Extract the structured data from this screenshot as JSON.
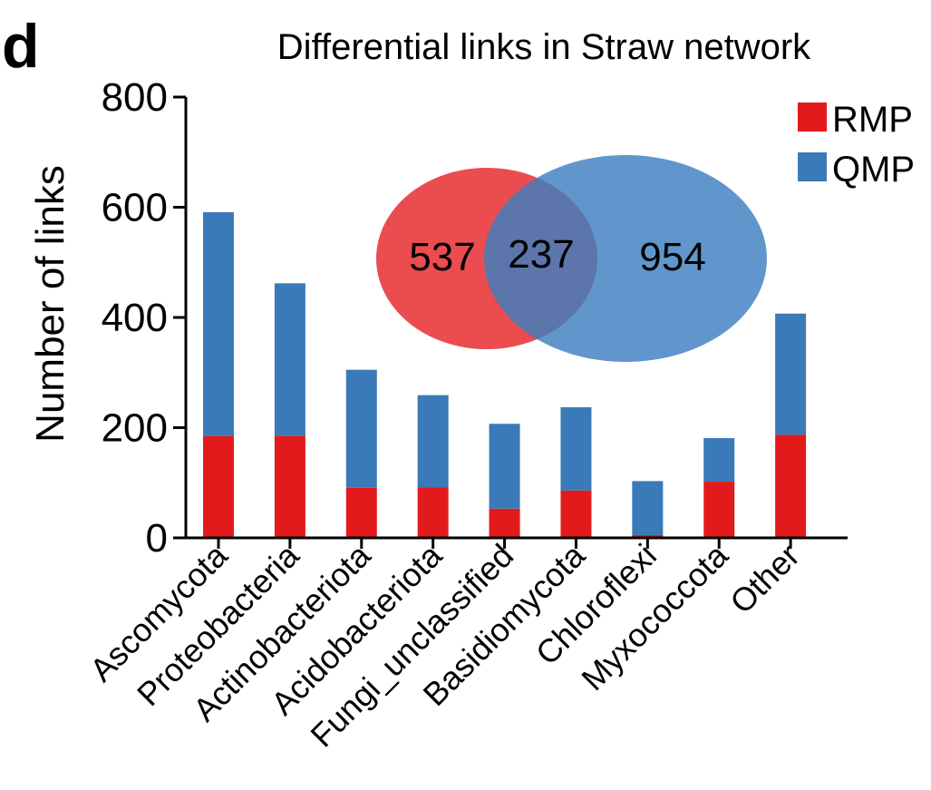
{
  "panel_label": "d",
  "chart_data": {
    "type": "bar",
    "stacked": true,
    "title": "Differential links in Straw network",
    "xlabel": "",
    "ylabel": "Number of links",
    "ylim": [
      0,
      800
    ],
    "yticks": [
      "0",
      "200",
      "400",
      "600",
      "800"
    ],
    "categories": [
      "Ascomycota",
      "Proteobacteria",
      "Actinobacteriota",
      "Acidobacteriota",
      "Fungi_unclassified",
      "Basidiomycota",
      "Chloroflexi",
      "Myxococcota",
      "Other"
    ],
    "series": [
      {
        "name": "RMP",
        "color": "#e31a1c",
        "values": [
          185,
          185,
          91,
          92,
          53,
          86,
          5,
          102,
          187
        ]
      },
      {
        "name": "QMP",
        "color": "#3a7ab8",
        "values": [
          406,
          277,
          214,
          167,
          154,
          151,
          98,
          79,
          220
        ]
      }
    ],
    "legend_position": "top-right",
    "grid": false
  },
  "venn": {
    "rmp_only": "537",
    "shared": "237",
    "qmp_only": "954",
    "rmp_color": "#e8393d",
    "qmp_color": "#3d7fbf"
  }
}
